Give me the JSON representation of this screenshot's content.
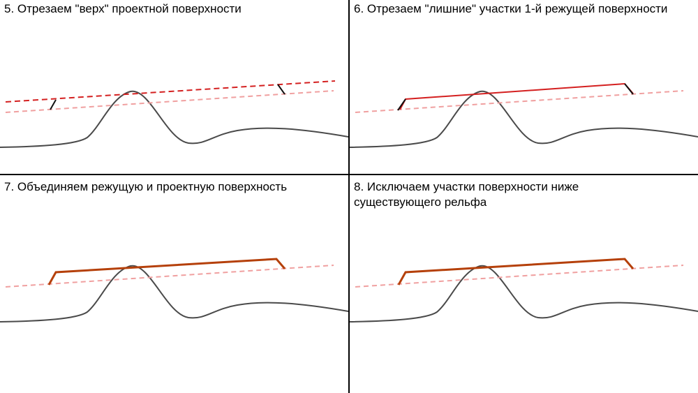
{
  "panels": [
    {
      "title": "5. Отрезаем \"верх\" проектной поверхности"
    },
    {
      "title": "6. Отрезаем \"лишние\" участки 1-й режущей поверхности"
    },
    {
      "title": "7. Объединяем режущую и проектную поверхность"
    },
    {
      "title_line1": "8. Исключаем участки поверхности ниже",
      "title_line2": "существующего рельфа"
    }
  ],
  "colors": {
    "terrain": "#4a4a4a",
    "design_surface": "#f0a0a0",
    "cutting_surface": "#d42020",
    "merged_surface": "#b5400a",
    "slope": "#111111"
  }
}
